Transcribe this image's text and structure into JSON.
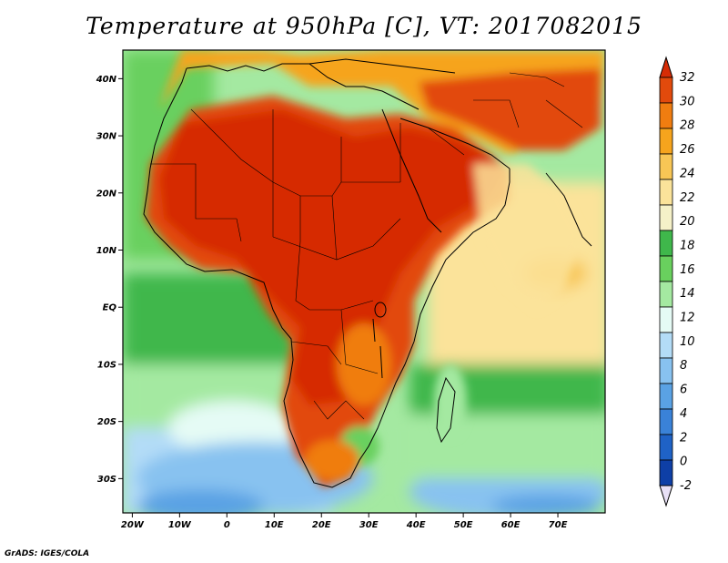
{
  "title": "Temperature at 950hPa [C], VT: 2017082015",
  "credit": "GrADS: IGES/COLA",
  "map": {
    "lon_range": [
      -22,
      80
    ],
    "lat_range": [
      -36,
      45
    ],
    "lon_ticks": [
      {
        "value": -20,
        "label": "20W"
      },
      {
        "value": -10,
        "label": "10W"
      },
      {
        "value": 0,
        "label": "0"
      },
      {
        "value": 10,
        "label": "10E"
      },
      {
        "value": 20,
        "label": "20E"
      },
      {
        "value": 30,
        "label": "30E"
      },
      {
        "value": 40,
        "label": "40E"
      },
      {
        "value": 50,
        "label": "50E"
      },
      {
        "value": 60,
        "label": "60E"
      },
      {
        "value": 70,
        "label": "70E"
      }
    ],
    "lat_ticks": [
      {
        "value": 40,
        "label": "40N"
      },
      {
        "value": 30,
        "label": "30N"
      },
      {
        "value": 20,
        "label": "20N"
      },
      {
        "value": 10,
        "label": "10N"
      },
      {
        "value": 0,
        "label": "EQ"
      },
      {
        "value": -10,
        "label": "10S"
      },
      {
        "value": -20,
        "label": "20S"
      },
      {
        "value": -30,
        "label": "30S"
      }
    ]
  },
  "colorbar": {
    "levels": [
      "32",
      "30",
      "28",
      "26",
      "24",
      "22",
      "20",
      "18",
      "16",
      "14",
      "12",
      "10",
      "8",
      "6",
      "4",
      "2",
      "0",
      "-2"
    ],
    "colors_top_to_bottom": [
      "#d62c06",
      "#e24a0c",
      "#f07d10",
      "#f6a41d",
      "#f8c655",
      "#fbe39a",
      "#f5f1c8",
      "#3fb74b",
      "#69d05e",
      "#a4e9a1",
      "#e5fbf5",
      "#b3dcf7",
      "#88c2f0",
      "#5aa2e4",
      "#3a82d8",
      "#1f62c6",
      "#0e3fa6",
      "#161a73"
    ]
  }
}
